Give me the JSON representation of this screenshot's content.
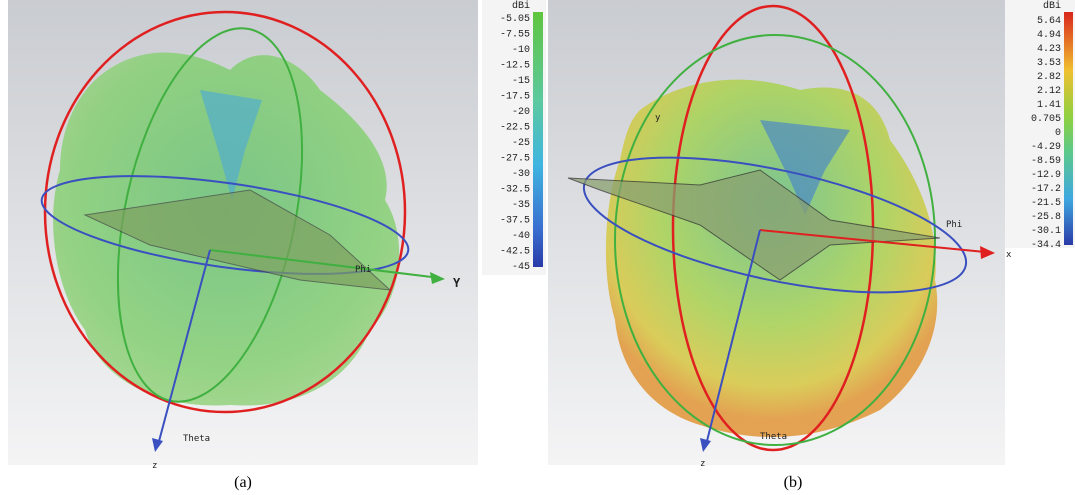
{
  "panels": [
    {
      "caption": "(a)",
      "colorbar": {
        "unit": "dBi",
        "labels": [
          "-5.05",
          "-7.55",
          "-10",
          "-12.5",
          "-15",
          "-17.5",
          "-20",
          "-22.5",
          "-25",
          "-27.5",
          "-30",
          "-32.5",
          "-35",
          "-37.5",
          "-40",
          "-42.5",
          "-45"
        ]
      },
      "axis_labels": {
        "y": "Y",
        "phi": "Phi",
        "theta": "Theta",
        "z": "z"
      }
    },
    {
      "caption": "(b)",
      "colorbar": {
        "unit": "dBi",
        "labels": [
          "5.64",
          "4.94",
          "4.23",
          "3.53",
          "2.82",
          "2.12",
          "1.41",
          "0.705",
          "0",
          "-4.29",
          "-8.59",
          "-12.9",
          "-17.2",
          "-21.5",
          "-25.8",
          "-30.1",
          "-34.4"
        ]
      },
      "axis_labels": {
        "y": "y",
        "phi": "Phi",
        "x": "x",
        "theta": "Theta",
        "z": "z"
      }
    }
  ]
}
